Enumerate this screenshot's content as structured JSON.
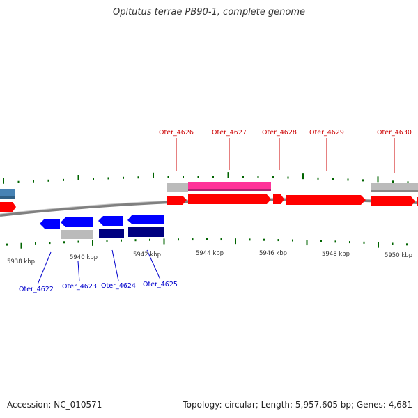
{
  "title": "Opitutus terrae PB90-1, complete genome",
  "accession": "Accession: NC_010571",
  "summary": "Topology: circular; Length: 5,957,605 bp; Genes: 4,681",
  "colors": {
    "forward_gene": "#ff0000",
    "reverse_gene": "#0000ff",
    "reverse_gene_dark": "#000080",
    "highlight_gene": "#ff3399",
    "neutral_gene": "#bbbbbb",
    "upstream_gene": "#4682b4",
    "backbone": "#808080",
    "tick": "#006400",
    "forward_label": "#cc0000",
    "reverse_label": "#0000cc"
  },
  "scale_labels": [
    "5938 kbp",
    "5940 kbp",
    "5942 kbp",
    "5944 kbp",
    "5946 kbp",
    "5948 kbp",
    "5950 kbp"
  ],
  "forward_labels": [
    "Oter_4626",
    "Oter_4627",
    "Oter_4628",
    "Oter_4629",
    "Oter_4630"
  ],
  "reverse_labels": [
    "Oter_4622",
    "Oter_4623",
    "Oter_4624",
    "Oter_4625"
  ]
}
